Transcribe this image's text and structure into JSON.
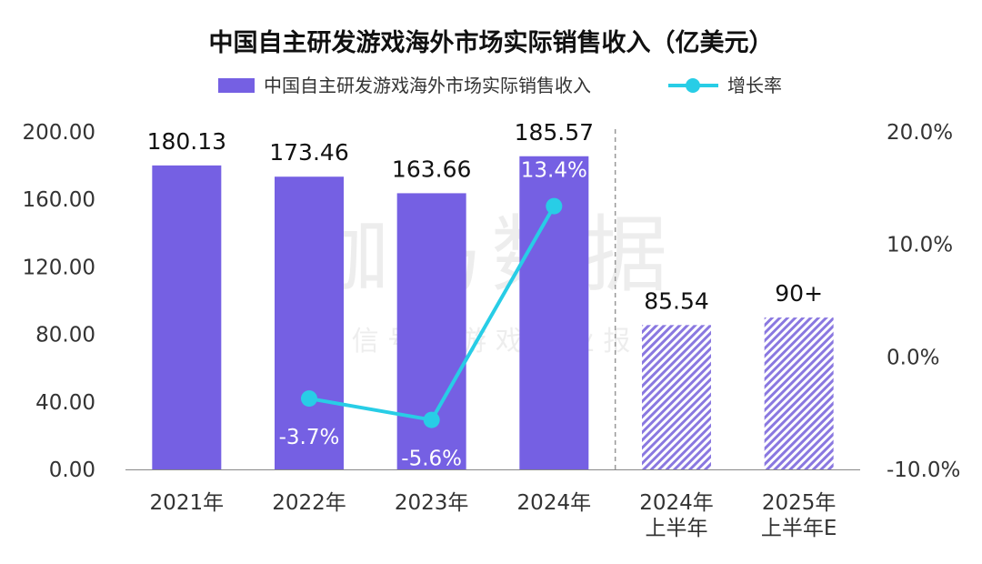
{
  "chart_data": {
    "type": "bar",
    "title": "中国自主研发游戏海外市场实际销售收入（亿美元）",
    "categories": [
      [
        "2021年"
      ],
      [
        "2022年"
      ],
      [
        "2023年"
      ],
      [
        "2024年"
      ],
      [
        "2024年",
        "上半年"
      ],
      [
        "2025年",
        "上半年E"
      ]
    ],
    "series": [
      {
        "name": "中国自主研发游戏海外市场实际销售收入",
        "type": "bar",
        "axis": "left",
        "values": [
          180.13,
          173.46,
          163.66,
          185.57,
          85.54,
          90
        ],
        "labels": [
          "180.13",
          "173.46",
          "163.66",
          "185.57",
          "85.54",
          "90+"
        ],
        "styles": [
          "solid",
          "solid",
          "solid",
          "solid",
          "hatched",
          "hatched"
        ]
      },
      {
        "name": "增长率",
        "type": "line",
        "axis": "right",
        "values": [
          null,
          -3.7,
          -5.6,
          13.4,
          null,
          null
        ],
        "labels": [
          "",
          "-3.7%",
          "-5.6%",
          "13.4%",
          "",
          ""
        ]
      }
    ],
    "y_left": {
      "range": [
        0,
        200
      ],
      "ticks": [
        "0.00",
        "40.00",
        "80.00",
        "120.00",
        "160.00",
        "200.00"
      ],
      "tick_values": [
        0,
        40,
        80,
        120,
        160,
        200
      ]
    },
    "y_right": {
      "range": [
        -10,
        20
      ],
      "ticks": [
        "-10.0%",
        "0.0%",
        "10.0%",
        "20.0%"
      ],
      "tick_values": [
        -10,
        0,
        10,
        20
      ]
    },
    "grid": false,
    "legend_position": "top-center",
    "colors": {
      "bar": "#7560e3",
      "hatch": "#8a78e0",
      "line": "#28cde6",
      "label_dark": "#111111",
      "label_light": "#ffffff",
      "axis_text": "#333333",
      "divider": "#999999"
    },
    "watermark": {
      "main": "伽马数据",
      "sub": "微 信 号 ： 游 戏 产 业 报 告"
    }
  }
}
